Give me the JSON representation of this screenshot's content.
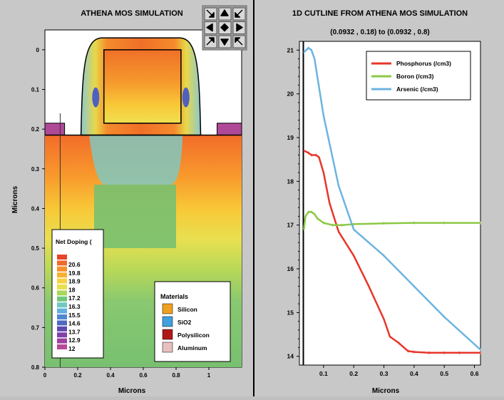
{
  "left_title": "ATHENA MOS SIMULATION",
  "right_title": "1D CUTLINE FROM ATHENA MOS SIMULATION",
  "right_subtitle": "(0.0932 , 0.18) to (0.0932 , 0.8)",
  "nav_icons": [
    "arrow-down-right-icon",
    "arrow-up-icon",
    "arrow-down-left-icon",
    "arrow-left-icon",
    "diamond-icon",
    "arrow-right-icon",
    "arrow-up-right-icon",
    "arrow-down-icon",
    "arrow-up-left-icon"
  ],
  "colors": {
    "phosphorus": "#e8352a",
    "boron": "#8cc846",
    "arsenic": "#6cb4e0",
    "silicon": "#f0a020",
    "sio2": "#40a0e0",
    "polysilicon": "#b01818",
    "aluminum": "#e8c0c0"
  },
  "net_doping": {
    "title": "Net Doping (",
    "levels": [
      "20.6",
      "19.8",
      "18.9",
      "18",
      "17.2",
      "16.3",
      "15.5",
      "14.6",
      "13.7",
      "12.9",
      "12"
    ],
    "colors": [
      "#e8442a",
      "#f06a2a",
      "#f5902a",
      "#f8b030",
      "#f8d040",
      "#e8e050",
      "#a8d858",
      "#70c878",
      "#70c8c0",
      "#60b0e0",
      "#5088d0",
      "#5068c0",
      "#6048b0",
      "#8040a8",
      "#a040a0",
      "#b84898"
    ]
  },
  "materials": {
    "title": "Materials",
    "items": [
      {
        "label": "Silicon",
        "color": "#f0a020"
      },
      {
        "label": "SiO2",
        "color": "#40a0e0"
      },
      {
        "label": "Polysilicon",
        "color": "#b01818"
      },
      {
        "label": "Aluminum",
        "color": "#e8c0c0"
      }
    ]
  },
  "chart_data": [
    {
      "type": "heatmap",
      "title": "ATHENA MOS SIMULATION",
      "xlabel": "Microns",
      "ylabel": "Microns",
      "xlim": [
        0,
        1.2
      ],
      "ylim": [
        0.8,
        -0.05
      ],
      "x_ticks": [
        "0",
        "0.2",
        "0.4",
        "0.6",
        "0.8",
        "1"
      ],
      "y_ticks": [
        "0",
        "0.1",
        "0.2",
        "0.3",
        "0.4",
        "0.5",
        "0.6",
        "0.7",
        "0.8"
      ],
      "cutline_x": 0.0932
    },
    {
      "type": "line",
      "title": "1D CUTLINE FROM ATHENA MOS SIMULATION",
      "subtitle": "(0.0932 , 0.18) to (0.0932 , 0.8)",
      "xlabel": "Microns",
      "ylabel": "",
      "xlim": [
        0.02,
        0.62
      ],
      "ylim": [
        13.8,
        21.2
      ],
      "x_ticks": [
        "0.1",
        "0.2",
        "0.3",
        "0.4",
        "0.5",
        "0.6"
      ],
      "y_ticks": [
        "14",
        "15",
        "16",
        "17",
        "18",
        "19",
        "20",
        "21"
      ],
      "legend": "top-right",
      "series": [
        {
          "name": "Phosphorus (/cm3)",
          "color": "#e8352a",
          "x": [
            0.035,
            0.05,
            0.06,
            0.075,
            0.085,
            0.1,
            0.12,
            0.15,
            0.2,
            0.25,
            0.3,
            0.32,
            0.35,
            0.38,
            0.4,
            0.45,
            0.5,
            0.55,
            0.62
          ],
          "y": [
            18.7,
            18.65,
            18.6,
            18.6,
            18.55,
            18.2,
            17.5,
            16.85,
            16.3,
            15.6,
            14.85,
            14.45,
            14.3,
            14.12,
            14.1,
            14.08,
            14.08,
            14.08,
            14.08
          ]
        },
        {
          "name": "Boron (/cm3)",
          "color": "#8cc846",
          "x": [
            0.035,
            0.04,
            0.05,
            0.06,
            0.07,
            0.08,
            0.1,
            0.13,
            0.16,
            0.2,
            0.3,
            0.4,
            0.5,
            0.62
          ],
          "y": [
            16.9,
            17.2,
            17.3,
            17.3,
            17.25,
            17.15,
            17.05,
            17.0,
            17.0,
            17.02,
            17.04,
            17.05,
            17.05,
            17.05
          ]
        },
        {
          "name": "Arsenic (/cm3)",
          "color": "#6cb4e0",
          "x": [
            0.035,
            0.05,
            0.06,
            0.07,
            0.1,
            0.15,
            0.2,
            0.3,
            0.4,
            0.5,
            0.62
          ],
          "y": [
            20.95,
            21.05,
            21.0,
            20.8,
            19.5,
            17.9,
            16.9,
            16.3,
            15.6,
            14.9,
            14.15
          ]
        }
      ]
    }
  ]
}
